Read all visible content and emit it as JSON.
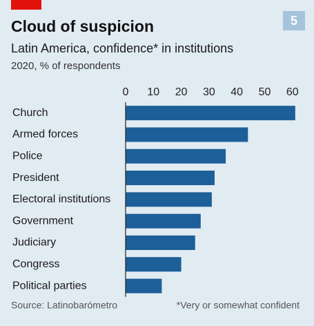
{
  "chart_data": {
    "type": "bar",
    "orientation": "horizontal",
    "title": "Cloud of suspicion",
    "subtitle": "Latin America, confidence* in institutions",
    "units_note": "2020, % of respondents",
    "badge": "5",
    "categories": [
      "Church",
      "Armed forces",
      "Police",
      "President",
      "Electoral institutions",
      "Government",
      "Judiciary",
      "Congress",
      "Political parties"
    ],
    "values": [
      61,
      44,
      36,
      32,
      31,
      27,
      25,
      20,
      13
    ],
    "color": "#1d5f98",
    "xlim": [
      0,
      67
    ],
    "xticks": [
      0,
      10,
      20,
      30,
      40,
      50,
      60
    ],
    "grid": false,
    "source": "Source: Latinobarómetro",
    "footnote": "*Very or somewhat confident"
  }
}
